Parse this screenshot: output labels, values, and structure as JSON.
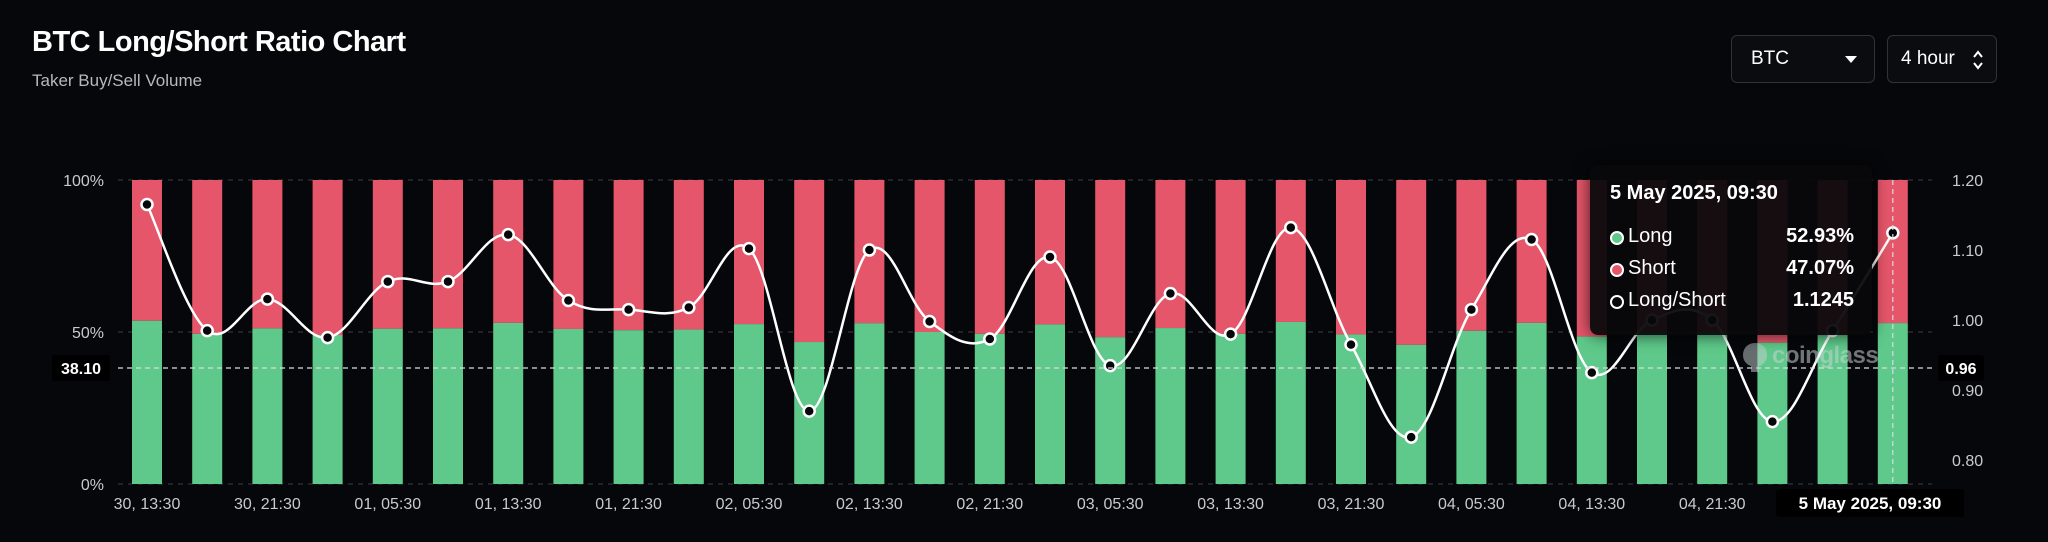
{
  "header": {
    "title": "BTC Long/Short Ratio Chart",
    "subtitle": "Taker Buy/Sell Volume"
  },
  "controls": {
    "symbol": "BTC",
    "interval": "4 hour"
  },
  "tooltip": {
    "date": "5 May 2025, 09:30",
    "rows": [
      {
        "label": "Long",
        "value": "52.93%",
        "color": "#5ec98a"
      },
      {
        "label": "Short",
        "value": "47.07%",
        "color": "#e5566a"
      },
      {
        "label": "Long/Short",
        "value": "1.1245",
        "color": "transparent"
      }
    ]
  },
  "watermark": "coinglass",
  "colors": {
    "long": "#5ec98a",
    "short": "#e5566a",
    "line": "#ffffff",
    "grid": "#3a3d45",
    "axis_text": "#c8cad0",
    "background": "#06070a"
  },
  "chart_data": {
    "type": "bar",
    "stacked": true,
    "x_tick_labels": [
      "30, 13:30",
      "30, 21:30",
      "01, 05:30",
      "01, 13:30",
      "01, 21:30",
      "02, 05:30",
      "02, 13:30",
      "02, 21:30",
      "03, 05:30",
      "03, 13:30",
      "03, 21:30",
      "04, 05:30",
      "04, 13:30",
      "04, 21:30",
      "05"
    ],
    "highlight_label": "5 May 2025, 09:30",
    "series": [
      {
        "name": "Long",
        "axis": "left",
        "values": [
          53.7,
          49.4,
          51.2,
          49.0,
          51.1,
          51.2,
          53.0,
          51.0,
          50.6,
          50.8,
          52.6,
          46.7,
          52.9,
          50.0,
          49.4,
          52.5,
          48.3,
          51.3,
          49.4,
          53.3,
          49.2,
          45.8,
          50.4,
          53.0,
          48.5,
          50.0,
          50.0,
          46.5,
          49.0,
          52.93
        ]
      },
      {
        "name": "Short",
        "axis": "left",
        "values": [
          46.3,
          50.6,
          48.8,
          51.0,
          48.9,
          48.8,
          47.0,
          49.0,
          49.4,
          49.2,
          47.4,
          53.3,
          47.1,
          50.0,
          50.6,
          47.5,
          51.7,
          48.7,
          50.6,
          46.7,
          50.8,
          54.2,
          49.6,
          47.0,
          51.5,
          50.0,
          50.0,
          53.5,
          51.0,
          47.07
        ]
      },
      {
        "name": "Long/Short",
        "type": "line",
        "axis": "right",
        "values": [
          1.165,
          0.985,
          1.03,
          0.975,
          1.055,
          1.055,
          1.122,
          1.028,
          1.015,
          1.018,
          1.102,
          0.87,
          1.1,
          0.998,
          0.973,
          1.09,
          0.935,
          1.038,
          0.98,
          1.132,
          0.965,
          0.833,
          1.015,
          1.115,
          0.925,
          1.0,
          1.0,
          0.855,
          0.985,
          1.1245
        ]
      }
    ],
    "y_left": {
      "min": 0,
      "max": 100,
      "ticks": [
        "0%",
        "50%",
        "100%"
      ],
      "crosshair_label": "38.10"
    },
    "y_right": {
      "min": 0.766,
      "max": 1.2,
      "ticks": [
        "0.80",
        "0.90",
        "1.00",
        "1.10",
        "1.20"
      ],
      "crosshair_label": "0.96"
    },
    "grid": true
  }
}
